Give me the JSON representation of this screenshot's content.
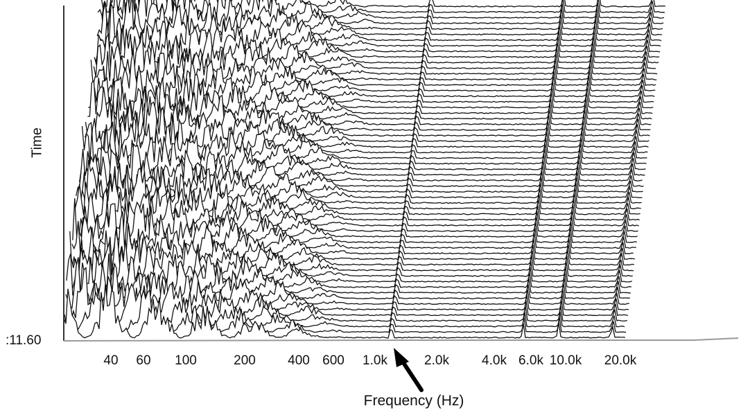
{
  "chart_data": {
    "type": "area",
    "subtype": "waterfall",
    "title": "",
    "xlabel": "Frequency (Hz)",
    "ylabel": "Time",
    "time_readout": ":11.60",
    "x_scale": "log",
    "x_ticks": [
      "40",
      "60",
      "100",
      "200",
      "400",
      "600",
      "1.0k",
      "2.0k",
      "4.0k",
      "6.0k",
      "10.0k",
      "20.0k"
    ],
    "x_tick_values": [
      40,
      60,
      100,
      200,
      400,
      600,
      1000,
      2000,
      4000,
      6000,
      10000,
      20000
    ],
    "annotation": {
      "type": "arrow",
      "target_frequency_hz": 1200
    },
    "slices": 60,
    "peak_frequencies_hz": [
      1200,
      5500,
      9000,
      18000
    ],
    "line_color": "#111111",
    "background": "#ffffff"
  }
}
